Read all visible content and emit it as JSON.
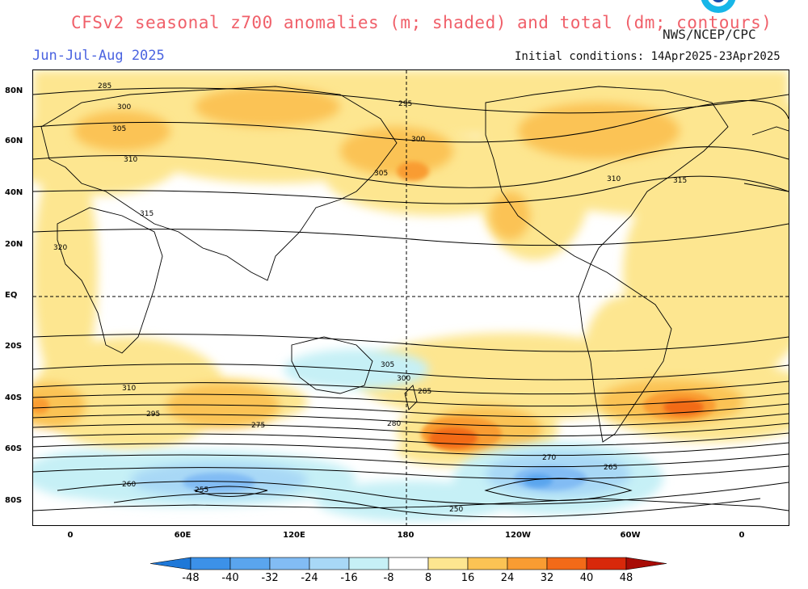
{
  "header": {
    "title": "CFSv2 seasonal z700 anomalies (m; shaded) and total (dm; contours)",
    "credit": "NWS/NCEP/CPC",
    "season": "Jun-Jul-Aug 2025",
    "initial_conditions": "Initial conditions: 14Apr2025-23Apr2025"
  },
  "map": {
    "lat_labels": [
      "80N",
      "60N",
      "40N",
      "20N",
      "EQ",
      "20S",
      "40S",
      "60S",
      "80S"
    ],
    "lon_labels": [
      "0",
      "60E",
      "120E",
      "180",
      "120W",
      "60W",
      "0"
    ],
    "contour_labels": [
      "285",
      "300",
      "305",
      "310",
      "315",
      "320",
      "295",
      "300",
      "305",
      "310",
      "315",
      "310",
      "305",
      "300",
      "295",
      "285",
      "280",
      "275",
      "270",
      "265",
      "260",
      "255",
      "250"
    ]
  },
  "colorbar": {
    "levels": [
      "-48",
      "-40",
      "-32",
      "-24",
      "-16",
      "-8",
      "8",
      "16",
      "24",
      "32",
      "40",
      "48"
    ],
    "colors": [
      "#1e78d8",
      "#3c91e8",
      "#5aa5ee",
      "#82bcf4",
      "#a8d8f6",
      "#c6f0f6",
      "#ffffff",
      "#fde690",
      "#fbc354",
      "#f99c32",
      "#f26a18",
      "#d8280a",
      "#a80c06"
    ]
  }
}
